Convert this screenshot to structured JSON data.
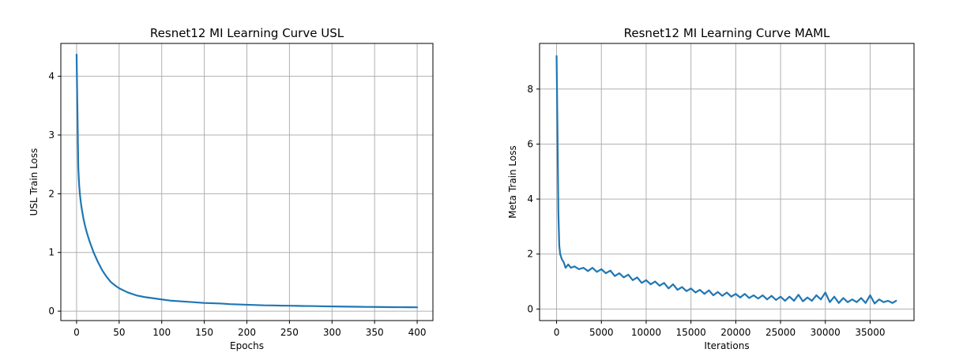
{
  "chart_data": [
    {
      "type": "line",
      "title": "Resnet12 MI Learning Curve USL",
      "xlabel": "Epochs",
      "ylabel": "USL Train Loss",
      "xlim": [
        -18.5,
        418.5
      ],
      "ylim": [
        -0.16,
        4.56
      ],
      "xticks": [
        0,
        50,
        100,
        150,
        200,
        250,
        300,
        350,
        400
      ],
      "yticks": [
        0,
        1,
        2,
        3,
        4
      ],
      "grid": true,
      "color": "#1f77b4",
      "series": [
        {
          "x": [
            0,
            1,
            2,
            3,
            4,
            5,
            6,
            8,
            10,
            12,
            15,
            18,
            20,
            25,
            30,
            35,
            40,
            45,
            50,
            60,
            70,
            80,
            90,
            100,
            110,
            120,
            130,
            140,
            150,
            160,
            170,
            180,
            190,
            200,
            210,
            220,
            230,
            240,
            250,
            260,
            270,
            280,
            290,
            300,
            310,
            320,
            330,
            340,
            350,
            360,
            370,
            380,
            390,
            400
          ],
          "y": [
            4.37,
            3.4,
            2.45,
            2.15,
            1.98,
            1.85,
            1.75,
            1.58,
            1.45,
            1.34,
            1.2,
            1.08,
            1.0,
            0.84,
            0.7,
            0.59,
            0.5,
            0.44,
            0.39,
            0.32,
            0.27,
            0.24,
            0.22,
            0.2,
            0.18,
            0.17,
            0.16,
            0.15,
            0.14,
            0.135,
            0.13,
            0.12,
            0.115,
            0.11,
            0.105,
            0.1,
            0.098,
            0.095,
            0.093,
            0.09,
            0.088,
            0.086,
            0.083,
            0.081,
            0.079,
            0.077,
            0.075,
            0.073,
            0.072,
            0.07,
            0.069,
            0.068,
            0.067,
            0.066
          ]
        }
      ]
    },
    {
      "type": "line",
      "title": "Resnet12 MI Learning Curve MAML",
      "xlabel": "Iterations",
      "ylabel": "Meta Train Loss",
      "xlim": [
        -1900,
        39900
      ],
      "ylim": [
        -0.42,
        9.66
      ],
      "xticks": [
        0,
        5000,
        10000,
        15000,
        20000,
        25000,
        30000,
        35000
      ],
      "yticks": [
        0,
        2,
        4,
        6,
        8
      ],
      "grid": true,
      "color": "#1f77b4",
      "series": [
        {
          "x": [
            0,
            100,
            200,
            300,
            400,
            600,
            800,
            1000,
            1300,
            1600,
            2000,
            2500,
            3000,
            3500,
            4000,
            4500,
            5000,
            5500,
            6000,
            6500,
            7000,
            7500,
            8000,
            8500,
            9000,
            9500,
            10000,
            10500,
            11000,
            11500,
            12000,
            12500,
            13000,
            13500,
            14000,
            14500,
            15000,
            15500,
            16000,
            16500,
            17000,
            17500,
            18000,
            18500,
            19000,
            19500,
            20000,
            20500,
            21000,
            21500,
            22000,
            22500,
            23000,
            23500,
            24000,
            24500,
            25000,
            25500,
            26000,
            26500,
            27000,
            27500,
            28000,
            28500,
            29000,
            29500,
            30000,
            30500,
            31000,
            31500,
            32000,
            32500,
            33000,
            33500,
            34000,
            34500,
            35000,
            35500,
            36000,
            36500,
            37000,
            37500,
            37900
          ],
          "y": [
            9.2,
            6.5,
            3.5,
            2.3,
            2.0,
            1.8,
            1.7,
            1.5,
            1.62,
            1.5,
            1.55,
            1.45,
            1.5,
            1.38,
            1.5,
            1.35,
            1.45,
            1.3,
            1.4,
            1.2,
            1.3,
            1.15,
            1.25,
            1.05,
            1.15,
            0.95,
            1.05,
            0.9,
            1.0,
            0.85,
            0.95,
            0.75,
            0.9,
            0.7,
            0.8,
            0.65,
            0.75,
            0.6,
            0.7,
            0.55,
            0.68,
            0.5,
            0.62,
            0.48,
            0.6,
            0.45,
            0.55,
            0.42,
            0.55,
            0.4,
            0.5,
            0.38,
            0.5,
            0.35,
            0.48,
            0.33,
            0.45,
            0.3,
            0.45,
            0.3,
            0.52,
            0.28,
            0.42,
            0.3,
            0.5,
            0.35,
            0.6,
            0.25,
            0.45,
            0.22,
            0.4,
            0.25,
            0.35,
            0.25,
            0.4,
            0.22,
            0.5,
            0.2,
            0.35,
            0.25,
            0.3,
            0.22,
            0.3
          ]
        }
      ]
    }
  ]
}
